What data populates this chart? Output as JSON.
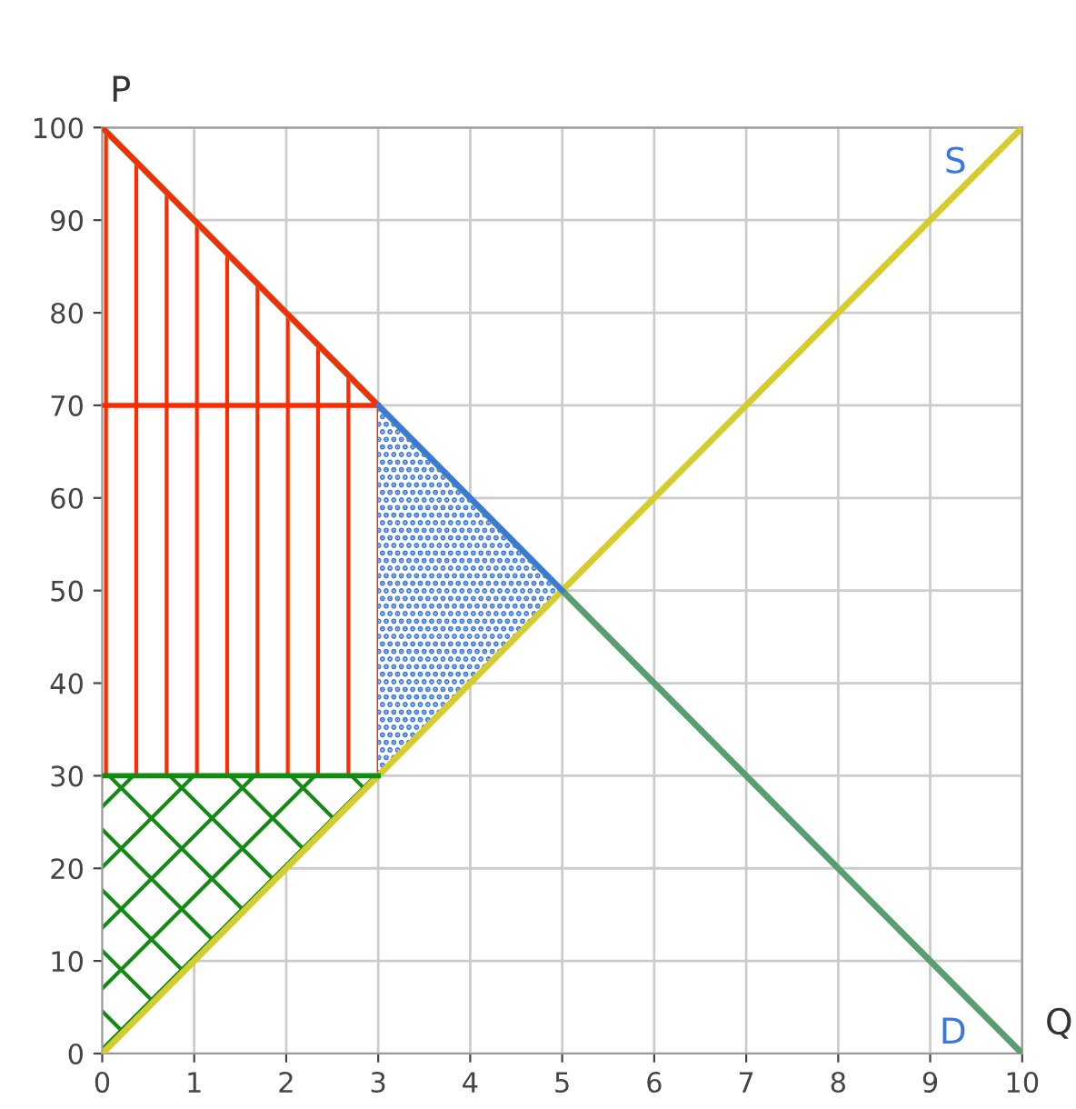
{
  "chart_data": {
    "type": "line",
    "xlabel": "Q",
    "ylabel": "P",
    "series": [
      {
        "name": "S",
        "color": "#d6cc2e",
        "x": [
          0,
          10
        ],
        "values": [
          0,
          100
        ]
      },
      {
        "name": "D",
        "color": "#5a9e6f",
        "x": [
          0,
          10
        ],
        "values": [
          100,
          0
        ]
      },
      {
        "color": "#ff2a00",
        "x": [
          0,
          3
        ],
        "values": [
          70,
          70
        ],
        "lower": [
          30,
          30
        ],
        "upper": [
          70,
          70
        ]
      },
      {
        "color": "#ff2a00",
        "x": [
          0,
          3
        ],
        "values": [
          100,
          70
        ],
        "lower": [
          70,
          70
        ],
        "upper": [
          100,
          70
        ]
      },
      {
        "color": "#3a78e0",
        "x": [
          3,
          5
        ],
        "values": [
          70,
          50
        ],
        "lower": [
          30,
          50
        ],
        "upper": [
          70,
          50
        ]
      },
      {
        "color": "#138a13",
        "x": [
          0,
          3
        ],
        "values": [
          30,
          30
        ],
        "lower": [
          0,
          30
        ],
        "upper": [
          30,
          30
        ]
      }
    ],
    "xlim": [
      0,
      10
    ],
    "ylim": [
      0,
      100
    ],
    "xticks": [
      0,
      1,
      2,
      3,
      4,
      5,
      6,
      7,
      8,
      9,
      10
    ],
    "yticks": [
      0,
      10,
      20,
      30,
      40,
      50,
      60,
      70,
      80,
      90,
      100
    ],
    "grid": true,
    "legend": false,
    "marker": "none",
    "line_style": "solid"
  }
}
